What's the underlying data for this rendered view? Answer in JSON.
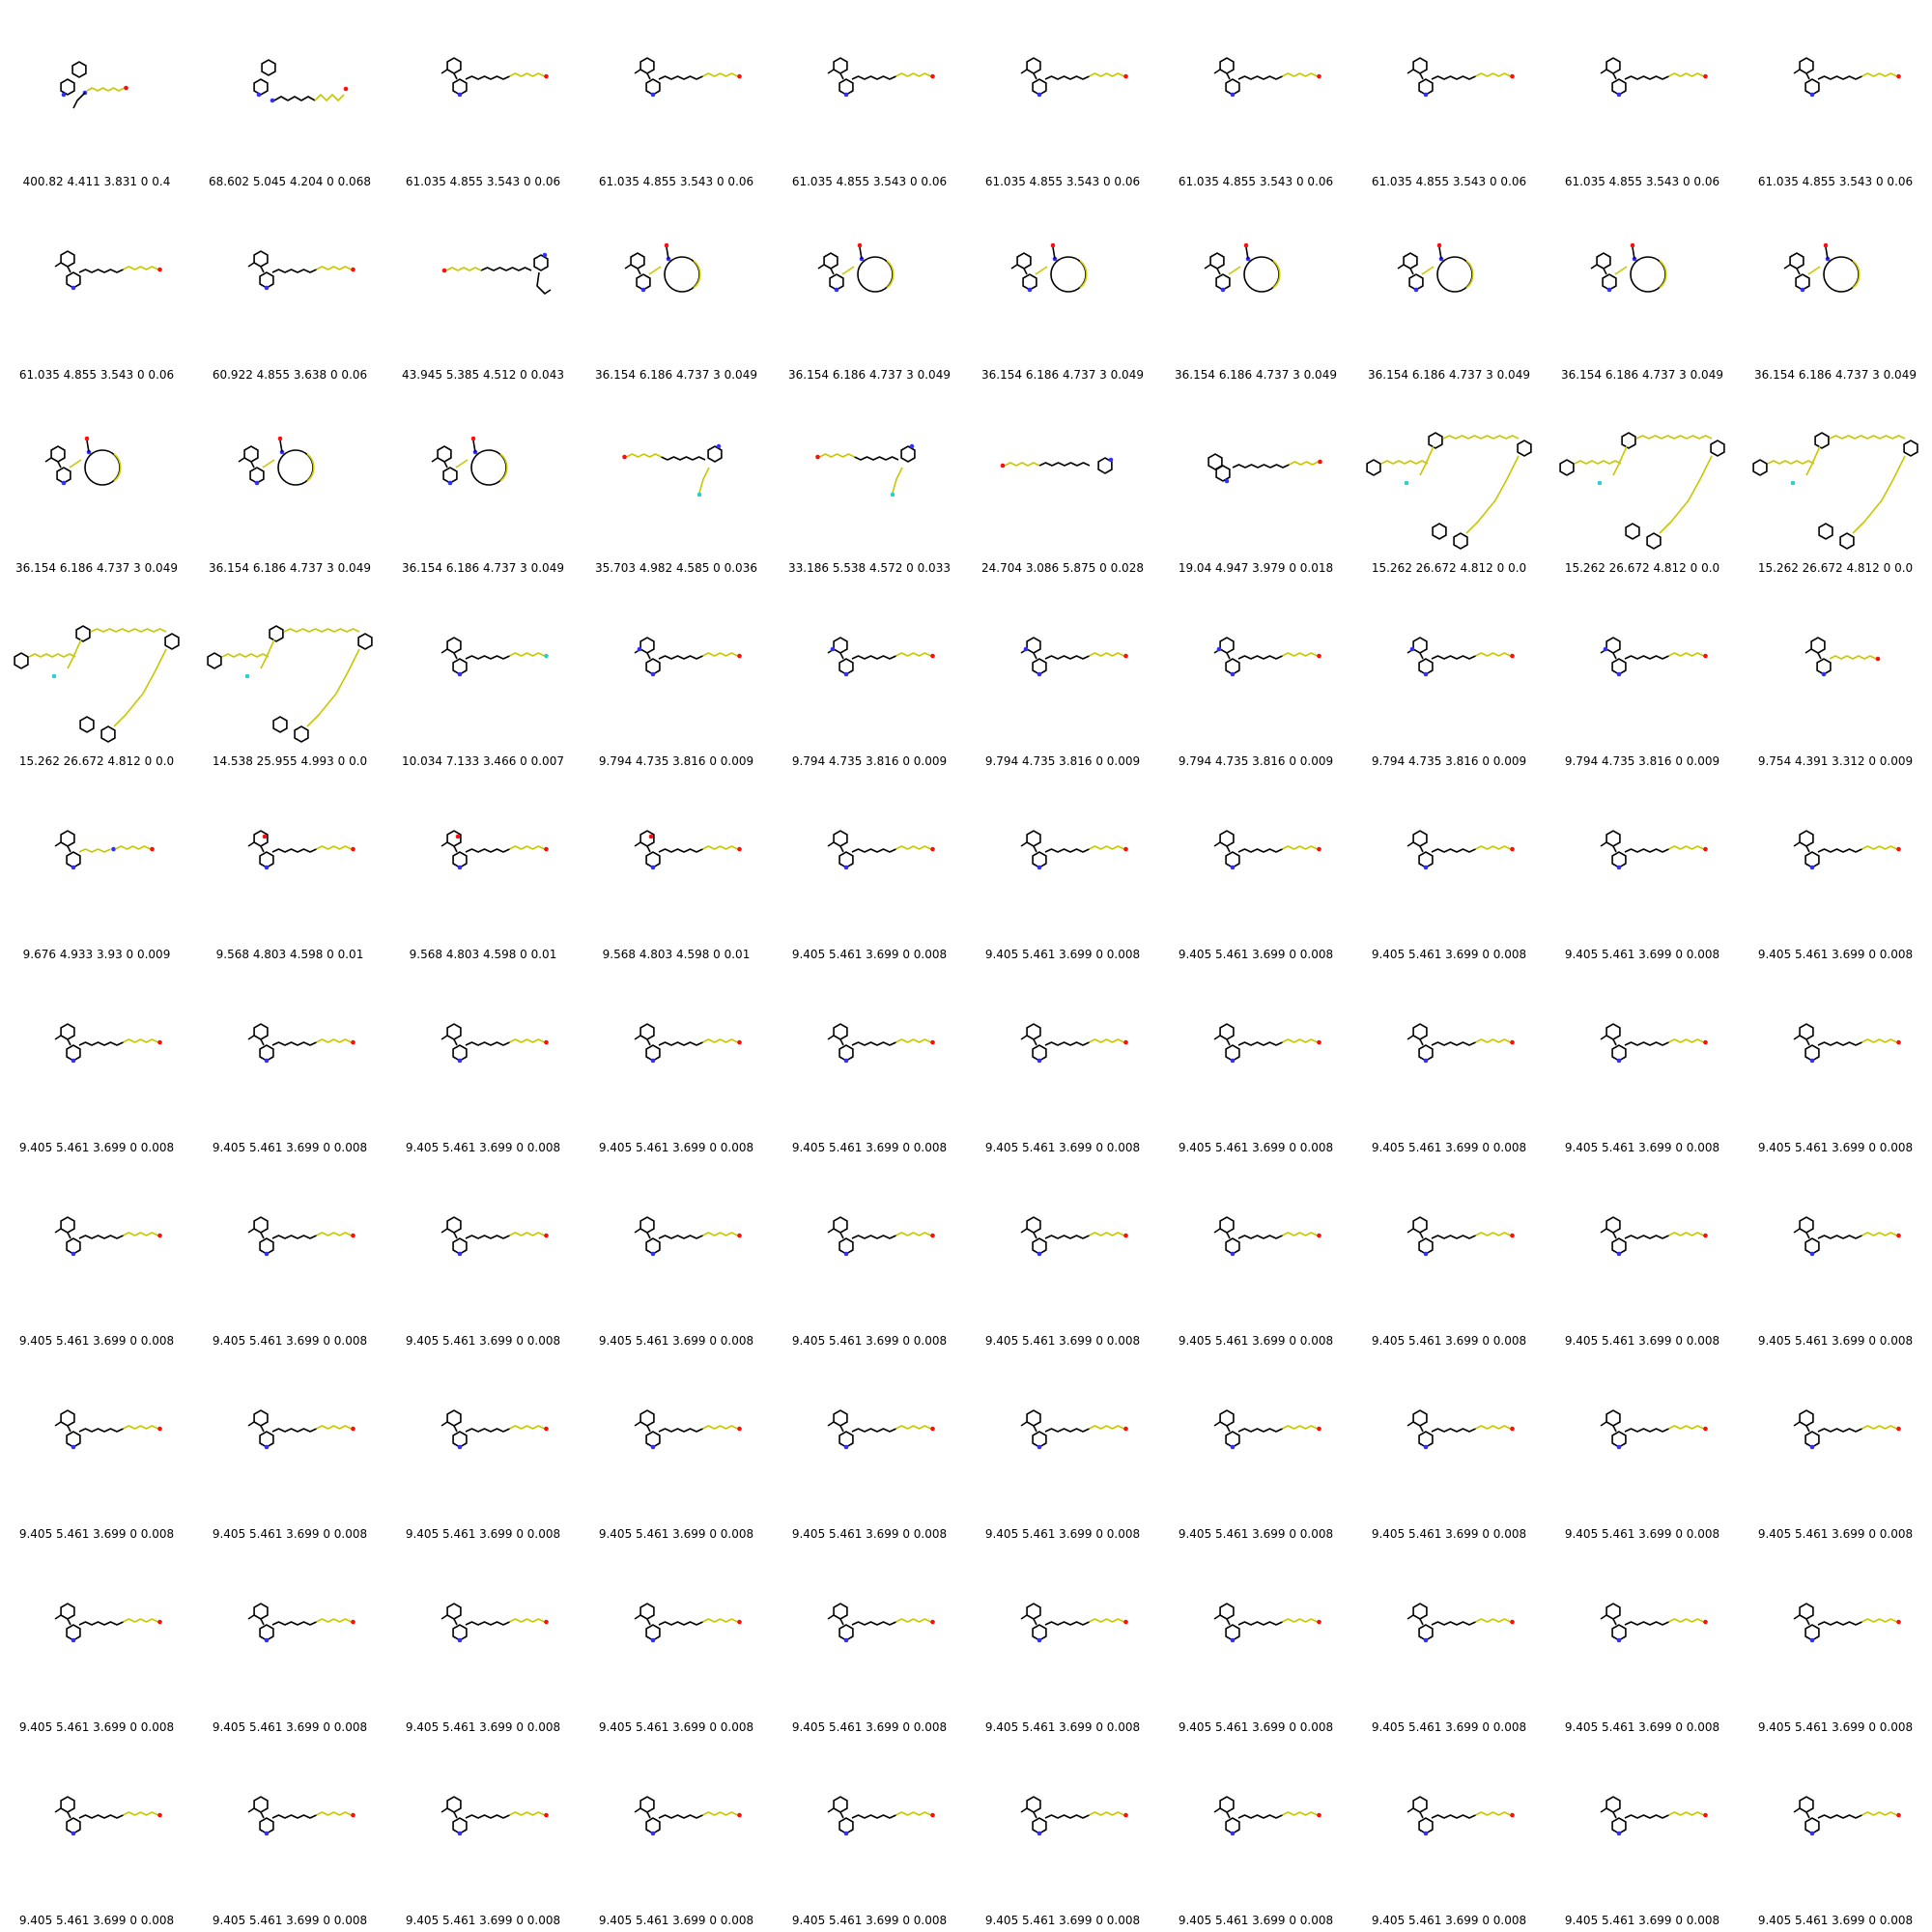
{
  "colors": {
    "bond": "#000000",
    "chain": "#c8c800",
    "nitrogen": "#3030ff",
    "oxygen": "#ff0d0d",
    "fluorine": "#33cccc"
  },
  "grid": {
    "columns": 10,
    "rows": 10,
    "molecules": [
      {
        "caption": "400.82 4.411 3.831 0 0.4",
        "shape": "amine-branched"
      },
      {
        "caption": "68.602 5.045 4.204 0 0.068",
        "shape": "azo-chain"
      },
      {
        "caption": "61.035 4.855 3.543 0 0.06",
        "shape": "chain"
      },
      {
        "caption": "61.035 4.855 3.543 0 0.06",
        "shape": "chain"
      },
      {
        "caption": "61.035 4.855 3.543 0 0.06",
        "shape": "chain"
      },
      {
        "caption": "61.035 4.855 3.543 0 0.06",
        "shape": "chain"
      },
      {
        "caption": "61.035 4.855 3.543 0 0.06",
        "shape": "chain"
      },
      {
        "caption": "61.035 4.855 3.543 0 0.06",
        "shape": "chain"
      },
      {
        "caption": "61.035 4.855 3.543 0 0.06",
        "shape": "chain"
      },
      {
        "caption": "61.035 4.855 3.543 0 0.06",
        "shape": "chain"
      },
      {
        "caption": "61.035 4.855 3.543 0 0.06",
        "shape": "chain"
      },
      {
        "caption": "60.922 4.855 3.638 0 0.06",
        "shape": "chain"
      },
      {
        "caption": "43.945 5.385 4.512 0 0.043",
        "shape": "reverse-chain"
      },
      {
        "caption": "36.154 6.186 4.737 3 0.049",
        "shape": "macrocycle"
      },
      {
        "caption": "36.154 6.186 4.737 3 0.049",
        "shape": "macrocycle"
      },
      {
        "caption": "36.154 6.186 4.737 3 0.049",
        "shape": "macrocycle"
      },
      {
        "caption": "36.154 6.186 4.737 3 0.049",
        "shape": "macrocycle"
      },
      {
        "caption": "36.154 6.186 4.737 3 0.049",
        "shape": "macrocycle"
      },
      {
        "caption": "36.154 6.186 4.737 3 0.049",
        "shape": "macrocycle"
      },
      {
        "caption": "36.154 6.186 4.737 3 0.049",
        "shape": "macrocycle"
      },
      {
        "caption": "36.154 6.186 4.737 3 0.049",
        "shape": "macrocycle"
      },
      {
        "caption": "36.154 6.186 4.737 3 0.049",
        "shape": "macrocycle"
      },
      {
        "caption": "36.154 6.186 4.737 3 0.049",
        "shape": "macrocycle"
      },
      {
        "caption": "35.703 4.982 4.585 0 0.036",
        "shape": "fluoro-chain"
      },
      {
        "caption": "33.186 5.538 4.572 0 0.033",
        "shape": "fluoro-chain"
      },
      {
        "caption": "24.704 3.086 5.875 0 0.028",
        "shape": "pyridine-chain"
      },
      {
        "caption": "19.04 4.947 3.979 0 0.018",
        "shape": "fused-chain"
      },
      {
        "caption": "15.262 26.672 4.812 0 0.0",
        "shape": "network"
      },
      {
        "caption": "15.262 26.672 4.812 0 0.0",
        "shape": "network"
      },
      {
        "caption": "15.262 26.672 4.812 0 0.0",
        "shape": "network"
      },
      {
        "caption": "15.262 26.672 4.812 0 0.0",
        "shape": "network"
      },
      {
        "caption": "14.538 25.955 4.993 0 0.0",
        "shape": "network"
      },
      {
        "caption": "10.034 7.133 3.466 0 0.007",
        "shape": "chain-f"
      },
      {
        "caption": "9.794 4.735 3.816 0 0.009",
        "shape": "amine-chain"
      },
      {
        "caption": "9.794 4.735 3.816 0 0.009",
        "shape": "amine-chain"
      },
      {
        "caption": "9.794 4.735 3.816 0 0.009",
        "shape": "amine-chain"
      },
      {
        "caption": "9.794 4.735 3.816 0 0.009",
        "shape": "amine-chain"
      },
      {
        "caption": "9.794 4.735 3.816 0 0.009",
        "shape": "amine-chain"
      },
      {
        "caption": "9.794 4.735 3.816 0 0.009",
        "shape": "amine-chain"
      },
      {
        "caption": "9.754 4.391 3.312 0 0.009",
        "shape": "short-chain"
      },
      {
        "caption": "9.676 4.933 3.93 0 0.009",
        "shape": "n-chain"
      },
      {
        "caption": "9.568 4.803 4.598 0 0.01",
        "shape": "oxa-ring-chain"
      },
      {
        "caption": "9.568 4.803 4.598 0 0.01",
        "shape": "oxa-ring-chain"
      },
      {
        "caption": "9.568 4.803 4.598 0 0.01",
        "shape": "oxa-ring-chain"
      },
      {
        "caption": "9.405 5.461 3.699 0 0.008",
        "shape": "chain"
      },
      {
        "caption": "9.405 5.461 3.699 0 0.008",
        "shape": "chain"
      },
      {
        "caption": "9.405 5.461 3.699 0 0.008",
        "shape": "chain"
      },
      {
        "caption": "9.405 5.461 3.699 0 0.008",
        "shape": "chain"
      },
      {
        "caption": "9.405 5.461 3.699 0 0.008",
        "shape": "chain"
      },
      {
        "caption": "9.405 5.461 3.699 0 0.008",
        "shape": "chain"
      },
      {
        "caption": "9.405 5.461 3.699 0 0.008",
        "shape": "chain"
      },
      {
        "caption": "9.405 5.461 3.699 0 0.008",
        "shape": "chain"
      },
      {
        "caption": "9.405 5.461 3.699 0 0.008",
        "shape": "chain"
      },
      {
        "caption": "9.405 5.461 3.699 0 0.008",
        "shape": "chain"
      },
      {
        "caption": "9.405 5.461 3.699 0 0.008",
        "shape": "chain"
      },
      {
        "caption": "9.405 5.461 3.699 0 0.008",
        "shape": "chain"
      },
      {
        "caption": "9.405 5.461 3.699 0 0.008",
        "shape": "chain"
      },
      {
        "caption": "9.405 5.461 3.699 0 0.008",
        "shape": "chain"
      },
      {
        "caption": "9.405 5.461 3.699 0 0.008",
        "shape": "chain"
      },
      {
        "caption": "9.405 5.461 3.699 0 0.008",
        "shape": "chain"
      },
      {
        "caption": "9.405 5.461 3.699 0 0.008",
        "shape": "chain"
      },
      {
        "caption": "9.405 5.461 3.699 0 0.008",
        "shape": "chain"
      },
      {
        "caption": "9.405 5.461 3.699 0 0.008",
        "shape": "chain"
      },
      {
        "caption": "9.405 5.461 3.699 0 0.008",
        "shape": "chain"
      },
      {
        "caption": "9.405 5.461 3.699 0 0.008",
        "shape": "chain"
      },
      {
        "caption": "9.405 5.461 3.699 0 0.008",
        "shape": "chain"
      },
      {
        "caption": "9.405 5.461 3.699 0 0.008",
        "shape": "chain"
      },
      {
        "caption": "9.405 5.461 3.699 0 0.008",
        "shape": "chain"
      },
      {
        "caption": "9.405 5.461 3.699 0 0.008",
        "shape": "chain"
      },
      {
        "caption": "9.405 5.461 3.699 0 0.008",
        "shape": "chain"
      },
      {
        "caption": "9.405 5.461 3.699 0 0.008",
        "shape": "chain"
      },
      {
        "caption": "9.405 5.461 3.699 0 0.008",
        "shape": "chain"
      },
      {
        "caption": "9.405 5.461 3.699 0 0.008",
        "shape": "chain"
      },
      {
        "caption": "9.405 5.461 3.699 0 0.008",
        "shape": "chain"
      },
      {
        "caption": "9.405 5.461 3.699 0 0.008",
        "shape": "chain"
      },
      {
        "caption": "9.405 5.461 3.699 0 0.008",
        "shape": "chain"
      },
      {
        "caption": "9.405 5.461 3.699 0 0.008",
        "shape": "chain"
      },
      {
        "caption": "9.405 5.461 3.699 0 0.008",
        "shape": "chain"
      },
      {
        "caption": "9.405 5.461 3.699 0 0.008",
        "shape": "chain"
      },
      {
        "caption": "9.405 5.461 3.699 0 0.008",
        "shape": "chain"
      },
      {
        "caption": "9.405 5.461 3.699 0 0.008",
        "shape": "chain"
      },
      {
        "caption": "9.405 5.461 3.699 0 0.008",
        "shape": "chain"
      },
      {
        "caption": "9.405 5.461 3.699 0 0.008",
        "shape": "chain"
      },
      {
        "caption": "9.405 5.461 3.699 0 0.008",
        "shape": "chain"
      },
      {
        "caption": "9.405 5.461 3.699 0 0.008",
        "shape": "chain"
      },
      {
        "caption": "9.405 5.461 3.699 0 0.008",
        "shape": "chain"
      },
      {
        "caption": "9.405 5.461 3.699 0 0.008",
        "shape": "chain"
      },
      {
        "caption": "9.405 5.461 3.699 0 0.008",
        "shape": "chain"
      },
      {
        "caption": "9.405 5.461 3.699 0 0.008",
        "shape": "chain"
      },
      {
        "caption": "9.405 5.461 3.699 0 0.008",
        "shape": "chain"
      },
      {
        "caption": "9.405 5.461 3.699 0 0.008",
        "shape": "chain"
      },
      {
        "caption": "9.405 5.461 3.699 0 0.008",
        "shape": "chain"
      },
      {
        "caption": "9.405 5.461 3.699 0 0.008",
        "shape": "chain"
      },
      {
        "caption": "9.405 5.461 3.699 0 0.008",
        "shape": "chain"
      },
      {
        "caption": "9.405 5.461 3.699 0 0.008",
        "shape": "chain"
      },
      {
        "caption": "9.405 5.461 3.699 0 0.008",
        "shape": "chain"
      },
      {
        "caption": "9.405 5.461 3.699 0 0.008",
        "shape": "chain"
      },
      {
        "caption": "9.405 5.461 3.699 0 0.008",
        "shape": "chain"
      },
      {
        "caption": "9.405 5.461 3.699 0 0.008",
        "shape": "chain"
      },
      {
        "caption": "9.405 5.461 3.699 0 0.008",
        "shape": "chain"
      }
    ]
  }
}
